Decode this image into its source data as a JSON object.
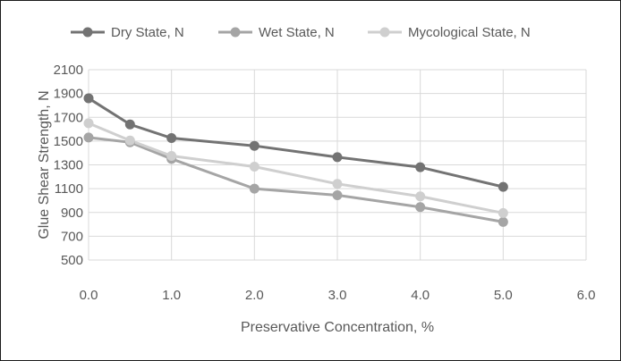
{
  "chart_data": {
    "type": "line",
    "xlabel": "Preservative Concentration, %",
    "ylabel": "Glue Shear Strength, N",
    "xlim": [
      0,
      6
    ],
    "ylim": [
      500,
      2100
    ],
    "x_ticks": [
      "0.0",
      "1.0",
      "2.0",
      "3.0",
      "4.0",
      "5.0",
      "6.0"
    ],
    "y_ticks": [
      "500",
      "700",
      "900",
      "1100",
      "1300",
      "1500",
      "1700",
      "1900",
      "2100"
    ],
    "grid": true,
    "legend_position": "top",
    "series": [
      {
        "name": "Dry State, N",
        "color": "#737373",
        "x": [
          0,
          0.5,
          1,
          2,
          3,
          4,
          5
        ],
        "y": [
          1860,
          1640,
          1525,
          1460,
          1365,
          1280,
          1115
        ]
      },
      {
        "name": "Wet State, N",
        "color": "#a5a5a5",
        "x": [
          0,
          0.5,
          1,
          2,
          3,
          4,
          5
        ],
        "y": [
          1530,
          1490,
          1350,
          1100,
          1045,
          945,
          820
        ]
      },
      {
        "name": "Mycological State, N",
        "color": "#cfcfcf",
        "x": [
          0,
          0.5,
          1,
          2,
          3,
          4,
          5
        ],
        "y": [
          1650,
          1505,
          1375,
          1285,
          1140,
          1035,
          895
        ]
      }
    ]
  }
}
